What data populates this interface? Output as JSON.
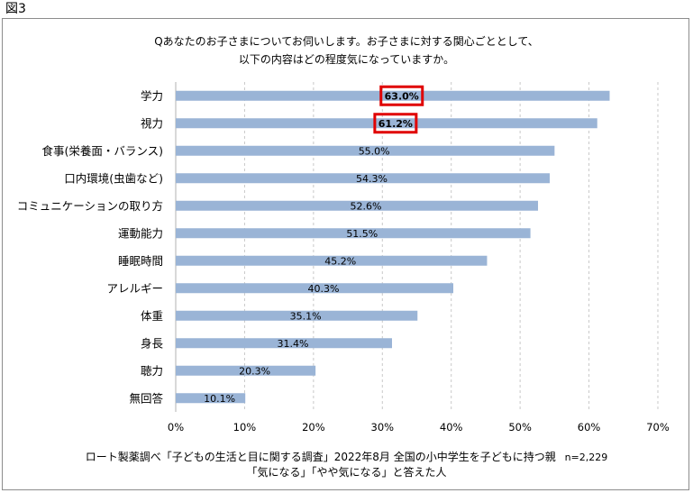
{
  "figure_label": "図3",
  "question": {
    "line1": "Qあなたのお子さまについてお伺いします。お子さまに対する関心ごととして、",
    "line2": "以下の内容はどの程度気になっていますか。"
  },
  "footer": {
    "line1": "ロート製薬調べ「子どもの生活と目に関する調査」2022年8月 全国の小中学生を子どもに持つ親",
    "sample_size": "n=2,229",
    "line2": "「気になる」「やや気になる」と答えた人"
  },
  "colors": {
    "bar": "#9ab4d6",
    "highlight_box": "#e00000",
    "grid": "#c8c8c8",
    "axis": "#b0b0b0"
  },
  "chart_data": {
    "type": "bar",
    "orientation": "horizontal",
    "title": "",
    "xlabel": "",
    "ylabel": "",
    "xlim": [
      0,
      70
    ],
    "x_ticks": [
      0,
      10,
      20,
      30,
      40,
      50,
      60,
      70
    ],
    "tick_suffix": "%",
    "grid": "vertical dashed",
    "legend": "none",
    "categories": [
      "学力",
      "視力",
      "食事(栄養面・バランス)",
      "口内環境(虫歯など)",
      "コミュニケーションの取り方",
      "運動能力",
      "睡眠時間",
      "アレルギー",
      "体重",
      "身長",
      "聴力",
      "無回答"
    ],
    "values": [
      63.0,
      61.2,
      55.0,
      54.3,
      52.6,
      51.5,
      45.2,
      40.3,
      35.1,
      31.4,
      20.3,
      10.1
    ],
    "value_labels": [
      "63.0%",
      "61.2%",
      "55.0%",
      "54.3%",
      "52.6%",
      "51.5%",
      "45.2%",
      "40.3%",
      "35.1%",
      "31.4%",
      "20.3%",
      "10.1%"
    ],
    "highlighted": [
      "学力",
      "視力"
    ]
  }
}
